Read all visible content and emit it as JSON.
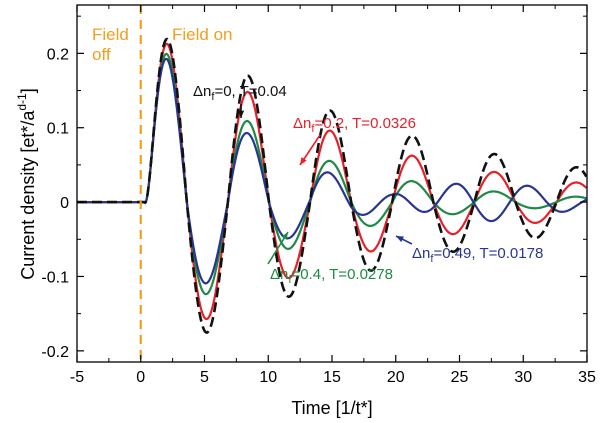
{
  "chart_data": {
    "type": "line",
    "xlabel": "Time [1/t*]",
    "ylabel": "Current density [et*/a",
    "ylabel_sup": "d-1",
    "ylabel_end": "]",
    "xlim": [
      -5,
      35
    ],
    "ylim": [
      -0.215,
      0.265
    ],
    "xticks": [
      -5,
      0,
      5,
      10,
      15,
      20,
      25,
      30,
      35
    ],
    "xtick_labels": [
      "-5",
      "0",
      "5",
      "10",
      "15",
      "20",
      "25",
      "30",
      "35"
    ],
    "yticks": [
      -0.2,
      -0.1,
      0,
      0.1,
      0.2
    ],
    "ytick_labels": [
      "-0.2",
      "-0.1",
      "0",
      "0.1",
      "0.2"
    ],
    "vline": {
      "x": 0,
      "color": "#F0A020",
      "style": "dashed"
    },
    "region_labels": [
      {
        "line1": "Field",
        "line2": "off"
      },
      {
        "line1": "Field on"
      }
    ],
    "series": [
      {
        "dn": "0",
        "temp": "0.04",
        "color": "#111111",
        "style": "dashed",
        "peak": 0.25,
        "trough": -0.19,
        "gamma": 0.05,
        "omega": 0.975,
        "phase": 0.09,
        "t0": 0.3
      },
      {
        "dn": "0.2",
        "temp": "0.0326",
        "color": "#E8202A",
        "style": "solid",
        "peak": 0.25,
        "trough": -0.185,
        "gamma": 0.067,
        "omega": 0.975,
        "phase": 0.09,
        "t0": 0.3
      },
      {
        "dn": "0.4",
        "temp": "0.0278",
        "color": "#1E8A45",
        "style": "solid",
        "peak": 0.25,
        "trough": -0.175,
        "gamma": 0.105,
        "omega": 0.975,
        "phase": 0.09,
        "t0": 0.3
      },
      {
        "dn": "0.49",
        "temp": "0.0178",
        "color": "#2A3590",
        "style": "solid",
        "peak": 0.25,
        "trough": -0.17,
        "gamma": 0.125,
        "omega": 0.975,
        "phase": 0.09,
        "t0": 0.3,
        "beat_amp": 0.035,
        "beat_center": 26,
        "beat_width": 8
      }
    ],
    "legend": "inline annotations",
    "grid": false
  },
  "colors": {
    "field": "#F0A020",
    "black": "#111111",
    "red": "#E8202A",
    "green": "#1E8A45",
    "blue": "#2A3590"
  }
}
